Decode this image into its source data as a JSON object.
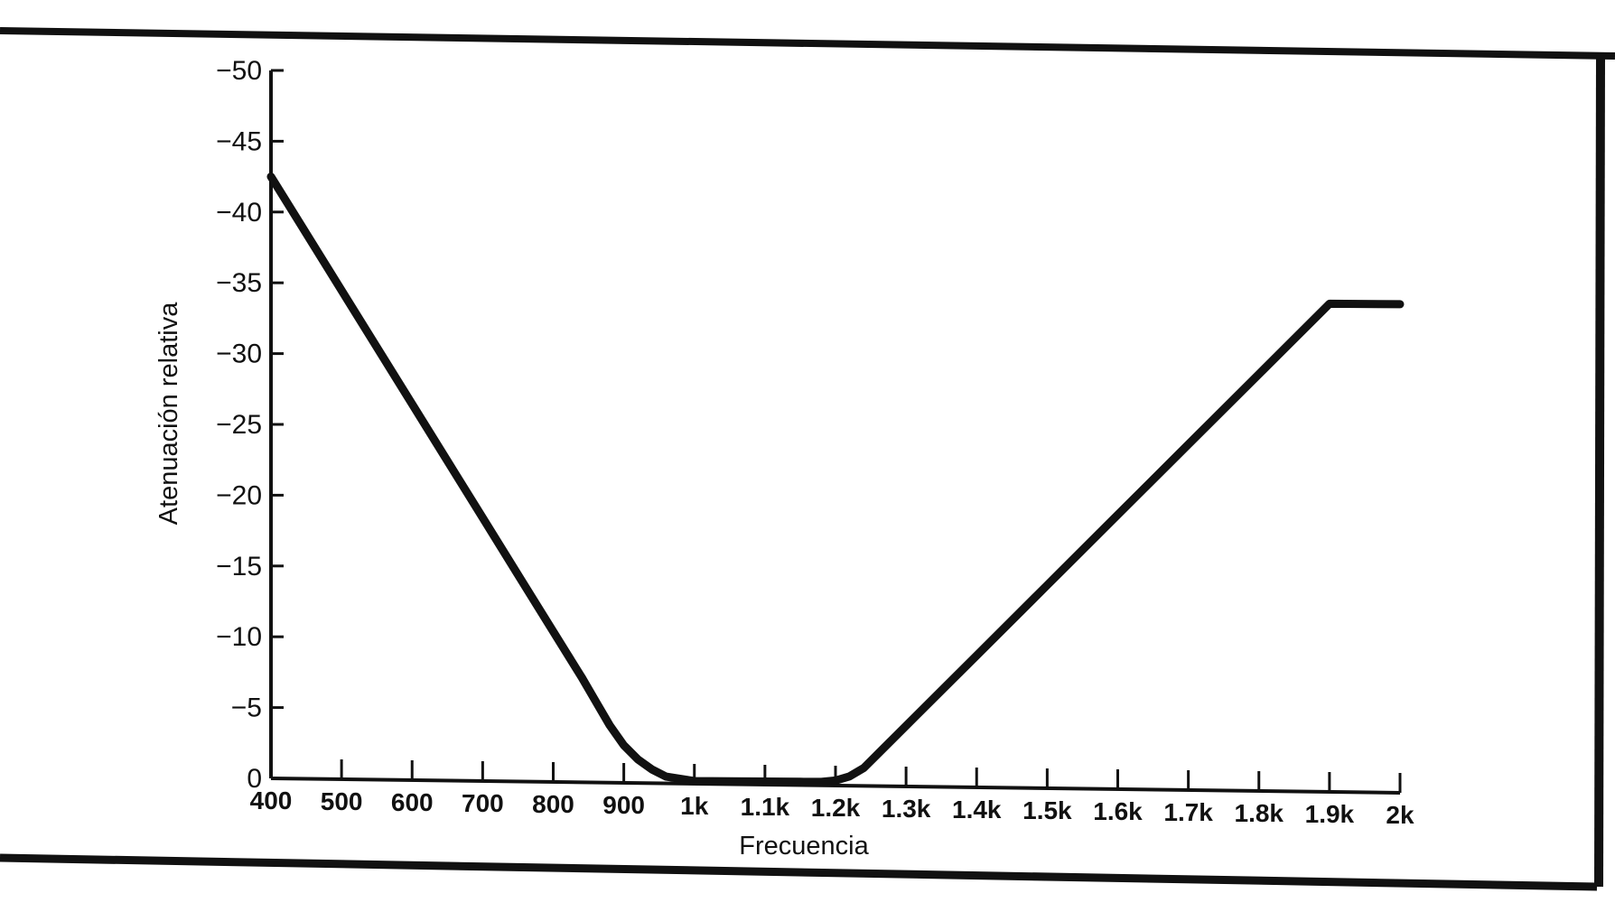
{
  "chart_data": {
    "type": "line",
    "title": "",
    "xlabel": "Frecuencia",
    "ylabel": "Atenuación relativa",
    "x_tick_labels": [
      "400",
      "500",
      "600",
      "700",
      "800",
      "900",
      "1k",
      "1.1k",
      "1.2k",
      "1.3k",
      "1.4k",
      "1.5k",
      "1.6k",
      "1.7k",
      "1.8k",
      "1.9k",
      "2k"
    ],
    "x_tick_values": [
      400,
      500,
      600,
      700,
      800,
      900,
      1000,
      1100,
      1200,
      1300,
      1400,
      1500,
      1600,
      1700,
      1800,
      1900,
      2000
    ],
    "y_tick_labels": [
      "0",
      "−5",
      "−10",
      "−15",
      "−20",
      "−25",
      "−30",
      "−35",
      "−40",
      "−45",
      "−50"
    ],
    "y_tick_values": [
      0,
      -5,
      -10,
      -15,
      -20,
      -25,
      -30,
      -35,
      -40,
      -45,
      -50
    ],
    "xlim": [
      400,
      2000
    ],
    "ylim": [
      0,
      -50
    ],
    "grid": false,
    "line_color": "#111111",
    "series": [
      {
        "x": [
          400,
          450,
          500,
          550,
          600,
          650,
          700,
          750,
          800,
          820,
          840,
          860,
          880,
          900,
          920,
          940,
          960,
          1000,
          1050,
          1100,
          1150,
          1180,
          1200,
          1220,
          1240,
          1260,
          1300,
          1400,
          1500,
          1600,
          1700,
          1800,
          1900,
          2000
        ],
        "y": [
          -42.5,
          -38.5,
          -34.5,
          -30.5,
          -26.5,
          -22.5,
          -18.5,
          -14.5,
          -10.5,
          -8.9,
          -7.3,
          -5.6,
          -3.9,
          -2.5,
          -1.5,
          -0.8,
          -0.3,
          0,
          0,
          0,
          0,
          0,
          -0.1,
          -0.4,
          -1.0,
          -2.0,
          -4.0,
          -9.0,
          -14.0,
          -19.0,
          -24.0,
          -29.0,
          -34.0,
          -34.0
        ]
      }
    ]
  }
}
